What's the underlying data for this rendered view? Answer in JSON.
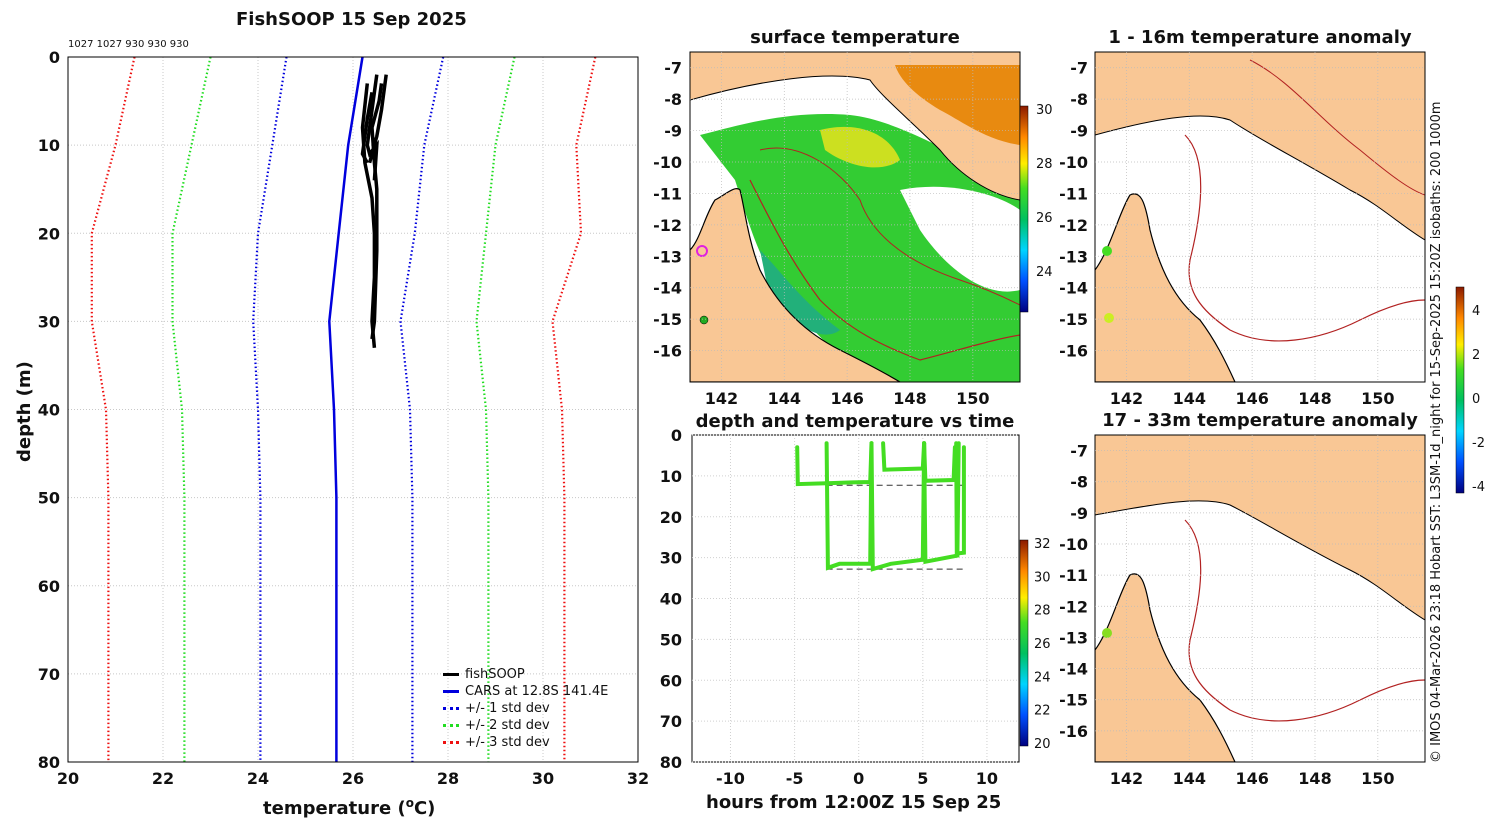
{
  "chart_data": [
    {
      "type": "line",
      "title": "FishSOOP 15 Sep 2025",
      "xlabel": "temperature (",
      "xlabel_sup": "o",
      "xlabel_tail": "C)",
      "ylabel": "depth (m)",
      "xlim": [
        20,
        32
      ],
      "ylim": [
        80,
        0
      ],
      "xticks": [
        20,
        22,
        24,
        26,
        28,
        30,
        32
      ],
      "yticks": [
        0,
        10,
        20,
        30,
        40,
        50,
        60,
        70,
        80
      ],
      "top_annotation": "1027 1027 930 930 930",
      "legend": [
        "fishSOOP",
        "CARS at 12.8S 141.4E",
        "+/- 1 std dev",
        "+/- 2 std dev",
        "+/- 3 std dev"
      ],
      "series": [
        {
          "name": "CARS at 12.8S 141.4E",
          "color": "#0000dd",
          "style": "solid",
          "points": [
            [
              26.2,
              0
            ],
            [
              25.9,
              10
            ],
            [
              25.7,
              20
            ],
            [
              25.5,
              30
            ],
            [
              25.6,
              40
            ],
            [
              25.65,
              50
            ],
            [
              25.65,
              60
            ],
            [
              25.65,
              70
            ],
            [
              25.65,
              80
            ]
          ]
        },
        {
          "name": "+1 std dev",
          "color": "#0000dd",
          "style": "dotted",
          "points": [
            [
              27.9,
              0
            ],
            [
              27.5,
              10
            ],
            [
              27.3,
              20
            ],
            [
              27.0,
              30
            ],
            [
              27.2,
              40
            ],
            [
              27.25,
              50
            ],
            [
              27.25,
              60
            ],
            [
              27.25,
              70
            ],
            [
              27.25,
              80
            ]
          ]
        },
        {
          "name": "-1 std dev",
          "color": "#0000dd",
          "style": "dotted",
          "points": [
            [
              24.6,
              0
            ],
            [
              24.3,
              10
            ],
            [
              24.0,
              20
            ],
            [
              23.9,
              30
            ],
            [
              24.0,
              40
            ],
            [
              24.05,
              50
            ],
            [
              24.05,
              60
            ],
            [
              24.05,
              70
            ],
            [
              24.05,
              80
            ]
          ]
        },
        {
          "name": "+2 std dev",
          "color": "#22dd22",
          "style": "dotted",
          "points": [
            [
              29.4,
              0
            ],
            [
              29.0,
              10
            ],
            [
              28.8,
              20
            ],
            [
              28.6,
              30
            ],
            [
              28.8,
              40
            ],
            [
              28.85,
              50
            ],
            [
              28.85,
              60
            ],
            [
              28.85,
              70
            ],
            [
              28.85,
              80
            ]
          ]
        },
        {
          "name": "-2 std dev",
          "color": "#22dd22",
          "style": "dotted",
          "points": [
            [
              23.0,
              0
            ],
            [
              22.6,
              10
            ],
            [
              22.2,
              20
            ],
            [
              22.2,
              30
            ],
            [
              22.4,
              40
            ],
            [
              22.45,
              50
            ],
            [
              22.45,
              60
            ],
            [
              22.45,
              70
            ],
            [
              22.45,
              80
            ]
          ]
        },
        {
          "name": "+3 std dev",
          "color": "#ee1111",
          "style": "dotted",
          "points": [
            [
              31.1,
              0
            ],
            [
              30.7,
              10
            ],
            [
              30.8,
              20
            ],
            [
              30.2,
              30
            ],
            [
              30.4,
              40
            ],
            [
              30.45,
              50
            ],
            [
              30.45,
              60
            ],
            [
              30.45,
              70
            ],
            [
              30.45,
              80
            ]
          ]
        },
        {
          "name": "-3 std dev",
          "color": "#ee1111",
          "style": "dotted",
          "points": [
            [
              21.4,
              0
            ],
            [
              21.0,
              10
            ],
            [
              20.5,
              20
            ],
            [
              20.5,
              30
            ],
            [
              20.8,
              40
            ],
            [
              20.85,
              50
            ],
            [
              20.85,
              60
            ],
            [
              20.85,
              70
            ],
            [
              20.85,
              80
            ]
          ]
        },
        {
          "name": "fishSOOP cast 1",
          "color": "#000000",
          "style": "solid",
          "points": [
            [
              26.3,
              3
            ],
            [
              26.2,
              8
            ],
            [
              26.25,
              12
            ],
            [
              26.4,
              16
            ],
            [
              26.45,
              20
            ],
            [
              26.45,
              25
            ],
            [
              26.4,
              30
            ],
            [
              26.45,
              33
            ]
          ]
        },
        {
          "name": "fishSOOP cast 2",
          "color": "#000000",
          "style": "solid",
          "points": [
            [
              26.5,
              2
            ],
            [
              26.4,
              6
            ],
            [
              26.3,
              10
            ],
            [
              26.35,
              11
            ],
            [
              26.5,
              10
            ],
            [
              26.45,
              14
            ]
          ]
        },
        {
          "name": "fishSOOP cast 3",
          "color": "#000000",
          "style": "solid",
          "points": [
            [
              26.6,
              3
            ],
            [
              26.55,
              5
            ],
            [
              26.4,
              8
            ],
            [
              26.45,
              12
            ],
            [
              26.5,
              15
            ],
            [
              26.5,
              22
            ],
            [
              26.45,
              30
            ],
            [
              26.4,
              32
            ]
          ]
        },
        {
          "name": "fishSOOP cast 4",
          "color": "#000000",
          "style": "solid",
          "points": [
            [
              26.7,
              2
            ],
            [
              26.6,
              6
            ],
            [
              26.5,
              9
            ],
            [
              26.4,
              11
            ],
            [
              26.35,
              12
            ]
          ]
        },
        {
          "name": "fishSOOP cast 5",
          "color": "#000000",
          "style": "solid",
          "points": [
            [
              26.4,
              4
            ],
            [
              26.3,
              7
            ],
            [
              26.2,
              11
            ],
            [
              26.3,
              12
            ]
          ]
        }
      ]
    },
    {
      "type": "heatmap",
      "title": "surface temperature",
      "xticks": [
        142,
        144,
        146,
        148,
        150
      ],
      "yticks": [
        -7,
        -8,
        -9,
        -10,
        -11,
        -12,
        -13,
        -14,
        -15,
        -16
      ],
      "colorbar_ticks": [
        30,
        28,
        26,
        24
      ]
    },
    {
      "type": "scatter",
      "title": "depth and temperature vs time",
      "xlabel": "hours from 12:00Z 15 Sep 25",
      "xlim": [
        -13,
        12.5
      ],
      "ylim": [
        80,
        0
      ],
      "xticks": [
        -10,
        -5,
        0,
        5,
        10
      ],
      "yticks": [
        0,
        10,
        20,
        30,
        40,
        50,
        60,
        70,
        80
      ],
      "colorbar_ticks": [
        32,
        30,
        28,
        26,
        24,
        22,
        20
      ],
      "point_color": "#44dd22",
      "reference_depths": [
        12.3,
        32.8
      ],
      "traces": [
        [
          [
            -4.8,
            3
          ],
          [
            -4.75,
            12
          ],
          [
            -2.5,
            11.8
          ],
          [
            -0.5,
            11.6
          ],
          [
            0.9,
            11.5
          ],
          [
            1.0,
            2
          ]
        ],
        [
          [
            -2.5,
            2
          ],
          [
            -2.4,
            32.5
          ],
          [
            -1.5,
            31.5
          ],
          [
            0.9,
            31.5
          ],
          [
            1.0,
            2
          ]
        ],
        [
          [
            1.0,
            2
          ],
          [
            1.1,
            32.8
          ],
          [
            2.5,
            31.5
          ],
          [
            5.0,
            30.5
          ],
          [
            5.1,
            2
          ]
        ],
        [
          [
            1.9,
            2
          ],
          [
            2.0,
            8.5
          ],
          [
            5.0,
            8.2
          ],
          [
            5.1,
            2
          ]
        ],
        [
          [
            5.1,
            2
          ],
          [
            5.2,
            31
          ],
          [
            7.7,
            29.5
          ],
          [
            7.8,
            2
          ]
        ],
        [
          [
            5.1,
            2
          ],
          [
            5.2,
            11.2
          ],
          [
            7.4,
            11
          ],
          [
            7.5,
            3
          ]
        ],
        [
          [
            7.6,
            2
          ],
          [
            7.65,
            29
          ],
          [
            8.2,
            28.8
          ],
          [
            8.2,
            3
          ]
        ]
      ]
    },
    {
      "type": "heatmap",
      "title": "1 - 16m temperature anomaly",
      "xticks": [
        142,
        144,
        146,
        148,
        150
      ],
      "yticks": [
        -7,
        -8,
        -9,
        -10,
        -11,
        -12,
        -13,
        -14,
        -15,
        -16
      ],
      "colorbar_ticks": [
        4,
        2,
        0,
        -2,
        -4
      ]
    },
    {
      "type": "heatmap",
      "title": "17 - 33m temperature anomaly",
      "xticks": [
        142,
        144,
        146,
        148,
        150
      ],
      "yticks": [
        -7,
        -8,
        -9,
        -10,
        -11,
        -12,
        -13,
        -14,
        -15,
        -16
      ]
    }
  ],
  "side_note": "© IMOS 04-Mar-2026 23:18 Hobart SST: L3SM-1d_night for 15-Sep-2025 15:20Z isobaths: 200  1000m",
  "colors": {
    "land": "#f9c795",
    "coast": "#000000",
    "isobath": "#b22222",
    "sst_main": "#33cc33",
    "cars": "#0000dd",
    "std1": "#0000dd",
    "std2": "#22dd22",
    "std3": "#ee1111"
  }
}
